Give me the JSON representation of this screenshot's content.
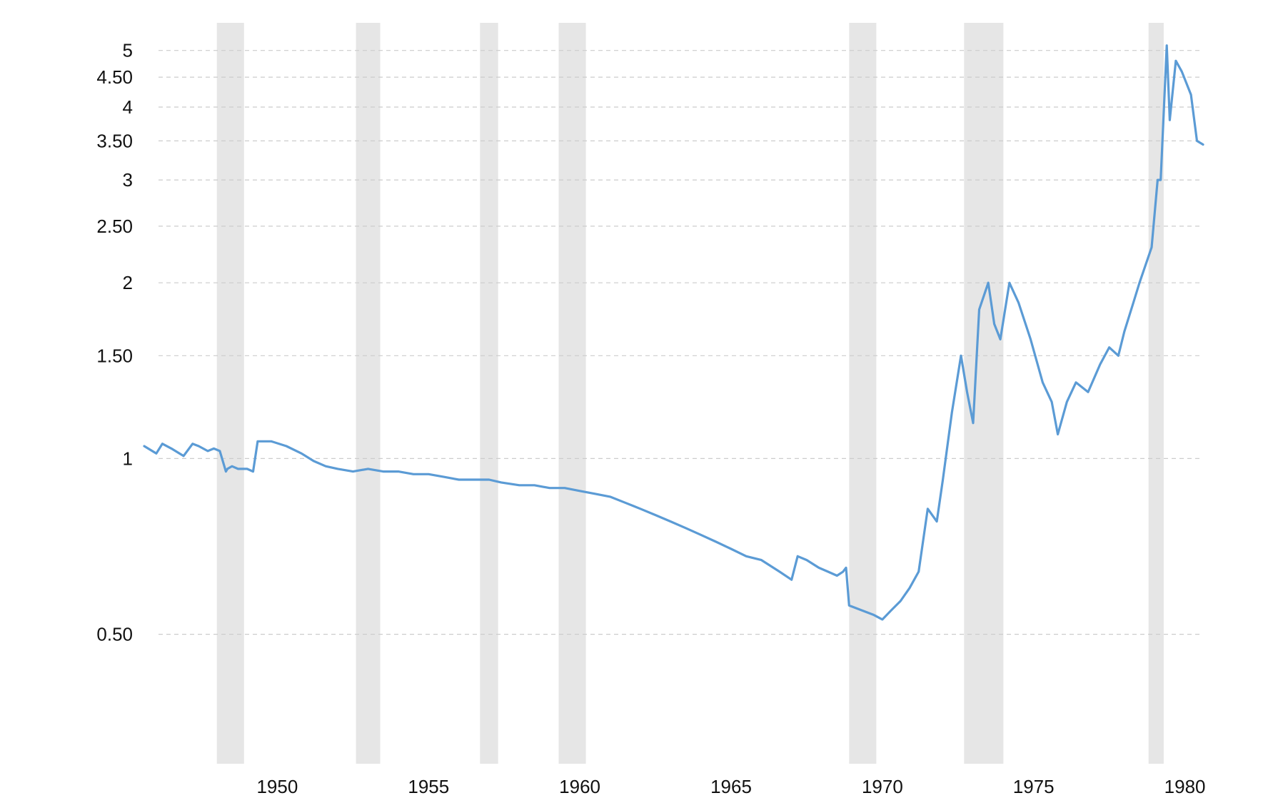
{
  "chart_data": {
    "type": "line",
    "title": "",
    "xlabel": "",
    "ylabel": "",
    "xlim": [
      1945.6,
      1980.6
    ],
    "ylim": [
      0.3,
      5.3
    ],
    "y_scale": "log",
    "grid": true,
    "x_ticks": [
      "1950",
      "1955",
      "1960",
      "1965",
      "1970",
      "1975",
      "1980"
    ],
    "x_tick_values": [
      1950,
      1955,
      1960,
      1965,
      1970,
      1975,
      1980
    ],
    "y_ticks": [
      "0.50",
      "1",
      "1.50",
      "2",
      "2.50",
      "3",
      "3.50",
      "4",
      "4.50",
      "5"
    ],
    "y_tick_values": [
      0.5,
      1,
      1.5,
      2,
      2.5,
      3,
      3.5,
      4,
      4.5,
      5
    ],
    "shaded_periods": [
      [
        1948.0,
        1948.9
      ],
      [
        1952.6,
        1953.4
      ],
      [
        1956.7,
        1957.3
      ],
      [
        1959.3,
        1960.2
      ],
      [
        1968.9,
        1969.8
      ],
      [
        1972.7,
        1974.0
      ],
      [
        1978.8,
        1979.3
      ]
    ],
    "series": [
      {
        "name": "",
        "color": "#5b9bd5",
        "x": [
          1945.6,
          1946.0,
          1946.2,
          1946.5,
          1946.9,
          1947.2,
          1947.4,
          1947.7,
          1947.9,
          1948.1,
          1948.3,
          1948.35,
          1948.5,
          1948.7,
          1949.0,
          1949.2,
          1949.35,
          1949.4,
          1949.8,
          1950.3,
          1950.8,
          1951.2,
          1951.6,
          1952.0,
          1952.5,
          1953.0,
          1953.5,
          1954.0,
          1954.5,
          1955.0,
          1955.5,
          1956.0,
          1956.5,
          1957.0,
          1957.4,
          1958.0,
          1958.5,
          1959.0,
          1959.5,
          1960.0,
          1960.5,
          1961.0,
          1961.5,
          1962.0,
          1962.5,
          1963.0,
          1963.5,
          1964.0,
          1964.5,
          1965.0,
          1965.5,
          1966.0,
          1966.6,
          1967.0,
          1967.2,
          1967.5,
          1967.9,
          1968.2,
          1968.5,
          1968.7,
          1968.8,
          1968.9,
          1969.3,
          1969.7,
          1970.0,
          1970.3,
          1970.6,
          1970.9,
          1971.2,
          1971.5,
          1971.8,
          1972.0,
          1972.3,
          1972.6,
          1972.8,
          1973.0,
          1973.2,
          1973.5,
          1973.7,
          1973.9,
          1974.2,
          1974.5,
          1974.9,
          1975.3,
          1975.6,
          1975.8,
          1976.1,
          1976.4,
          1976.8,
          1977.2,
          1977.5,
          1977.8,
          1978.0,
          1978.3,
          1978.5,
          1978.9,
          1979.1,
          1979.2,
          1979.4,
          1979.5,
          1979.7,
          1979.9,
          1980.2,
          1980.4,
          1980.6
        ],
        "y": [
          1.05,
          1.02,
          1.06,
          1.04,
          1.01,
          1.06,
          1.05,
          1.03,
          1.04,
          1.03,
          0.95,
          0.96,
          0.97,
          0.96,
          0.96,
          0.95,
          1.07,
          1.07,
          1.07,
          1.05,
          1.02,
          0.99,
          0.97,
          0.96,
          0.95,
          0.96,
          0.95,
          0.95,
          0.94,
          0.94,
          0.93,
          0.92,
          0.92,
          0.92,
          0.91,
          0.9,
          0.9,
          0.89,
          0.89,
          0.88,
          0.87,
          0.86,
          0.84,
          0.82,
          0.8,
          0.78,
          0.76,
          0.74,
          0.72,
          0.7,
          0.68,
          0.67,
          0.64,
          0.62,
          0.68,
          0.67,
          0.65,
          0.64,
          0.63,
          0.64,
          0.65,
          0.56,
          0.55,
          0.54,
          0.53,
          0.55,
          0.57,
          0.6,
          0.64,
          0.82,
          0.78,
          0.92,
          1.2,
          1.5,
          1.3,
          1.15,
          1.8,
          2.0,
          1.7,
          1.6,
          2.0,
          1.85,
          1.6,
          1.35,
          1.25,
          1.1,
          1.25,
          1.35,
          1.3,
          1.45,
          1.55,
          1.5,
          1.65,
          1.85,
          2.0,
          2.3,
          3.0,
          3.0,
          5.1,
          3.8,
          4.8,
          4.6,
          4.2,
          3.5,
          3.45
        ]
      }
    ]
  }
}
